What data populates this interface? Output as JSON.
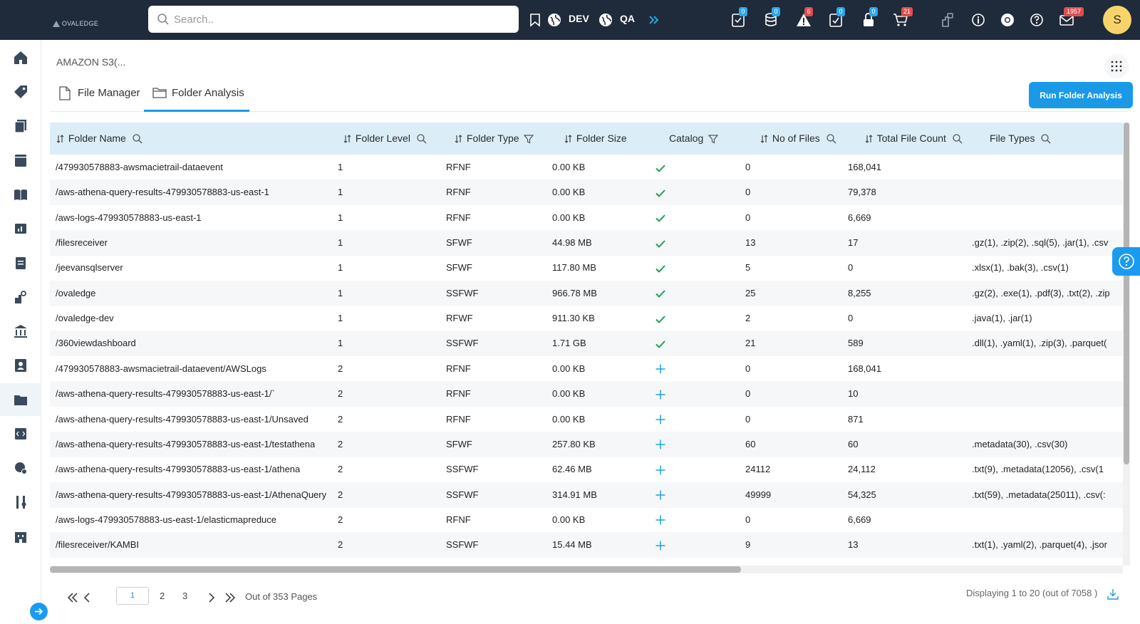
{
  "topbar": {
    "logo": "OVALEDGE",
    "search_placeholder": "Search..",
    "env1": "DEV",
    "env2": "QA",
    "badges": [
      "0",
      "0",
      "6",
      "0",
      "0",
      "21",
      "1957"
    ],
    "user_initial": "S"
  },
  "breadcrumb": "AMAZON S3(...",
  "tabs": [
    {
      "label": "File Manager"
    },
    {
      "label": "Folder Analysis"
    }
  ],
  "run_button": "Run Folder Analysis",
  "table": {
    "columns": [
      "Folder Name",
      "Folder Level",
      "Folder Type",
      "Folder Size",
      "Catalog",
      "No of Files",
      "Total File Count",
      "File Types"
    ],
    "rows": [
      {
        "name": "/479930578883-awsmacietrail-dataevent",
        "level": "1",
        "type": "RFNF",
        "size": "0.00 KB",
        "catalog": "check",
        "files": "0",
        "total": "168,041",
        "ftypes": ""
      },
      {
        "name": "/aws-athena-query-results-479930578883-us-east-1",
        "level": "1",
        "type": "RFNF",
        "size": "0.00 KB",
        "catalog": "check",
        "files": "0",
        "total": "79,378",
        "ftypes": ""
      },
      {
        "name": "/aws-logs-479930578883-us-east-1",
        "level": "1",
        "type": "RFNF",
        "size": "0.00 KB",
        "catalog": "check",
        "files": "0",
        "total": "6,669",
        "ftypes": ""
      },
      {
        "name": "/filesreceiver",
        "level": "1",
        "type": "SFWF",
        "size": "44.98 MB",
        "catalog": "check",
        "files": "13",
        "total": "17",
        "ftypes": ".gz(1), .zip(2), .sql(5), .jar(1), .csv"
      },
      {
        "name": "/jeevansqlserver",
        "level": "1",
        "type": "SFWF",
        "size": "117.80 MB",
        "catalog": "check",
        "files": "5",
        "total": "0",
        "ftypes": ".xlsx(1), .bak(3), .csv(1)"
      },
      {
        "name": "/ovaledge",
        "level": "1",
        "type": "SSFWF",
        "size": "966.78 MB",
        "catalog": "check",
        "files": "25",
        "total": "8,255",
        "ftypes": ".gz(2), .exe(1), .pdf(3), .txt(2), .zip"
      },
      {
        "name": "/ovaledge-dev",
        "level": "1",
        "type": "RFWF",
        "size": "911.30 KB",
        "catalog": "check",
        "files": "2",
        "total": "0",
        "ftypes": ".java(1), .jar(1)"
      },
      {
        "name": "/360viewdashboard",
        "level": "1",
        "type": "SSFWF",
        "size": "1.71 GB",
        "catalog": "check",
        "files": "21",
        "total": "589",
        "ftypes": ".dll(1), .yaml(1), .zip(3), .parquet("
      },
      {
        "name": "/479930578883-awsmacietrail-dataevent/AWSLogs",
        "level": "2",
        "type": "RFNF",
        "size": "0.00 KB",
        "catalog": "plus",
        "files": "0",
        "total": "168,041",
        "ftypes": ""
      },
      {
        "name": "/aws-athena-query-results-479930578883-us-east-1/`",
        "level": "2",
        "type": "RFNF",
        "size": "0.00 KB",
        "catalog": "plus",
        "files": "0",
        "total": "10",
        "ftypes": ""
      },
      {
        "name": "/aws-athena-query-results-479930578883-us-east-1/Unsaved",
        "level": "2",
        "type": "RFNF",
        "size": "0.00 KB",
        "catalog": "plus",
        "files": "0",
        "total": "871",
        "ftypes": ""
      },
      {
        "name": "/aws-athena-query-results-479930578883-us-east-1/testathena",
        "level": "2",
        "type": "SFWF",
        "size": "257.80 KB",
        "catalog": "plus",
        "files": "60",
        "total": "60",
        "ftypes": ".metadata(30), .csv(30)"
      },
      {
        "name": "/aws-athena-query-results-479930578883-us-east-1/athena",
        "level": "2",
        "type": "SSFWF",
        "size": "62.46 MB",
        "catalog": "plus",
        "files": "24112",
        "total": "24,112",
        "ftypes": ".txt(9), .metadata(12056), .csv(1"
      },
      {
        "name": "/aws-athena-query-results-479930578883-us-east-1/AthenaQuery",
        "level": "2",
        "type": "SSFWF",
        "size": "314.91 MB",
        "catalog": "plus",
        "files": "49999",
        "total": "54,325",
        "ftypes": ".txt(59), .metadata(25011), .csv(:"
      },
      {
        "name": "/aws-logs-479930578883-us-east-1/elasticmapreduce",
        "level": "2",
        "type": "RFNF",
        "size": "0.00 KB",
        "catalog": "plus",
        "files": "0",
        "total": "6,669",
        "ftypes": ""
      },
      {
        "name": "/filesreceiver/KAMBI",
        "level": "2",
        "type": "SSFWF",
        "size": "15.44 MB",
        "catalog": "plus",
        "files": "9",
        "total": "13",
        "ftypes": ".txt(1), .yaml(2), .parquet(4), .jsor"
      }
    ]
  },
  "pagination": {
    "current": "1",
    "pages": [
      "2",
      "3"
    ],
    "out_of": "Out of 353 Pages",
    "display": "Displaying 1 to 20 (out of 7058 )"
  },
  "colors": {
    "accent": "#1a9ae6",
    "topbar": "#1f2a3a",
    "header_bg": "#dbeef8",
    "check": "#1e9e5a",
    "plus": "#1aa3d9"
  }
}
